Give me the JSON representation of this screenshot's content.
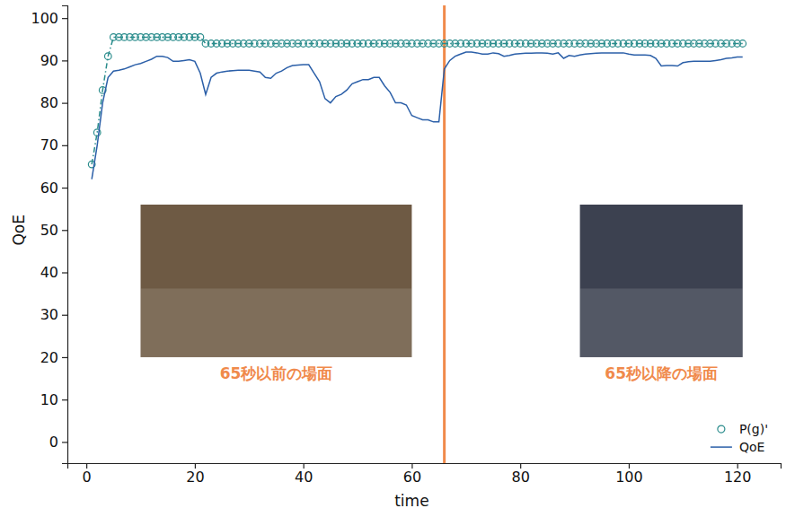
{
  "chart_data": {
    "type": "line",
    "x_label": "time",
    "y_label": "QoE",
    "xlim": [
      -3.5,
      128
    ],
    "ylim": [
      -5,
      103
    ],
    "xticks": [
      0,
      20,
      40,
      60,
      80,
      100,
      120
    ],
    "yticks": [
      0,
      10,
      20,
      30,
      40,
      50,
      60,
      70,
      80,
      90,
      100
    ],
    "legend": "lower right",
    "x": [
      1,
      2,
      3,
      4,
      5,
      6,
      7,
      8,
      9,
      10,
      11,
      12,
      13,
      14,
      15,
      16,
      17,
      18,
      19,
      20,
      21,
      22,
      23,
      24,
      25,
      26,
      27,
      28,
      29,
      30,
      31,
      32,
      33,
      34,
      35,
      36,
      37,
      38,
      39,
      40,
      41,
      42,
      43,
      44,
      45,
      46,
      47,
      48,
      49,
      50,
      51,
      52,
      53,
      54,
      55,
      56,
      57,
      58,
      59,
      60,
      61,
      62,
      63,
      64,
      65,
      66,
      67,
      68,
      69,
      70,
      71,
      72,
      73,
      74,
      75,
      76,
      77,
      78,
      79,
      80,
      81,
      82,
      83,
      84,
      85,
      86,
      87,
      88,
      89,
      90,
      91,
      92,
      93,
      94,
      95,
      96,
      97,
      98,
      99,
      100,
      101,
      102,
      103,
      104,
      105,
      106,
      107,
      108,
      109,
      110,
      111,
      112,
      113,
      114,
      115,
      116,
      117,
      118,
      119,
      120,
      121
    ],
    "series": [
      {
        "name": "P(g)'",
        "color": "#2a8c8c",
        "marker": "circle",
        "line_style": "dashdot",
        "values": [
          65.5,
          73,
          83,
          91,
          95.5,
          95.5,
          95.5,
          95.5,
          95.5,
          95.5,
          95.5,
          95.5,
          95.5,
          95.5,
          95.5,
          95.5,
          95.5,
          95.5,
          95.5,
          95.5,
          95.5,
          94,
          94,
          94,
          94,
          94,
          94,
          94,
          94,
          94,
          94,
          94,
          94,
          94,
          94,
          94,
          94,
          94,
          94,
          94,
          94,
          94,
          94,
          94,
          94,
          94,
          94,
          94,
          94,
          94,
          94,
          94,
          94,
          94,
          94,
          94,
          94,
          94,
          94,
          94,
          94,
          94,
          94,
          94,
          94,
          94,
          94,
          94,
          94,
          94,
          94,
          94,
          94,
          94,
          94,
          94,
          94,
          94,
          94,
          94,
          94,
          94,
          94,
          94,
          94,
          94,
          94,
          94,
          94,
          94,
          94,
          94,
          94,
          94,
          94,
          94,
          94,
          94,
          94,
          94,
          94,
          94,
          94,
          94,
          94,
          94,
          94,
          94,
          94,
          94,
          94,
          94,
          94,
          94,
          94,
          94,
          94,
          94,
          94,
          94,
          94
        ]
      },
      {
        "name": "QoE",
        "color": "#2b5fa8",
        "line_style": "solid",
        "values": [
          62,
          70,
          80,
          86,
          87.5,
          87.7,
          88,
          88.5,
          89,
          89.3,
          89.8,
          90.3,
          91,
          91,
          90.7,
          89.8,
          89.8,
          90,
          90.2,
          89.8,
          87,
          82,
          86,
          87,
          87.3,
          87.5,
          87.6,
          87.7,
          87.7,
          87.7,
          87.5,
          87.3,
          86,
          85.8,
          87,
          87.5,
          88.3,
          88.8,
          88.9,
          89,
          89,
          87,
          85,
          81,
          80,
          81.5,
          82,
          83,
          84.5,
          85,
          85.5,
          85.5,
          86,
          86,
          84,
          82.5,
          80,
          80,
          79.5,
          77,
          76.5,
          76,
          76,
          75.5,
          75.5,
          88,
          90,
          91,
          91.5,
          92,
          92,
          91.8,
          91.5,
          91.5,
          91.8,
          91.6,
          91,
          91.2,
          91.5,
          91.6,
          91.7,
          91.7,
          91.8,
          91.8,
          91.7,
          91.5,
          91.8,
          90.5,
          91.2,
          91,
          91.3,
          91.5,
          91.6,
          91.7,
          91.8,
          91.8,
          91.8,
          91.8,
          91.8,
          91.5,
          91.3,
          91.3,
          91.3,
          91.2,
          90.5,
          88.7,
          88.8,
          88.8,
          88.7,
          89.5,
          89.7,
          89.8,
          89.8,
          89.8,
          89.8,
          90,
          90.2,
          90.5,
          90.6,
          90.8,
          90.8
        ]
      }
    ],
    "annotations": [
      {
        "type": "vline",
        "x": 66,
        "color": "#f08a4b"
      },
      {
        "type": "image",
        "text": "65秒以前の場面",
        "color": "#f08a4b",
        "x": [
          10,
          60
        ],
        "y": [
          20,
          56
        ]
      },
      {
        "type": "image",
        "text": "65秒以降の場面",
        "color": "#f08a4b",
        "x": [
          91,
          121
        ],
        "y": [
          20,
          56
        ]
      }
    ]
  }
}
